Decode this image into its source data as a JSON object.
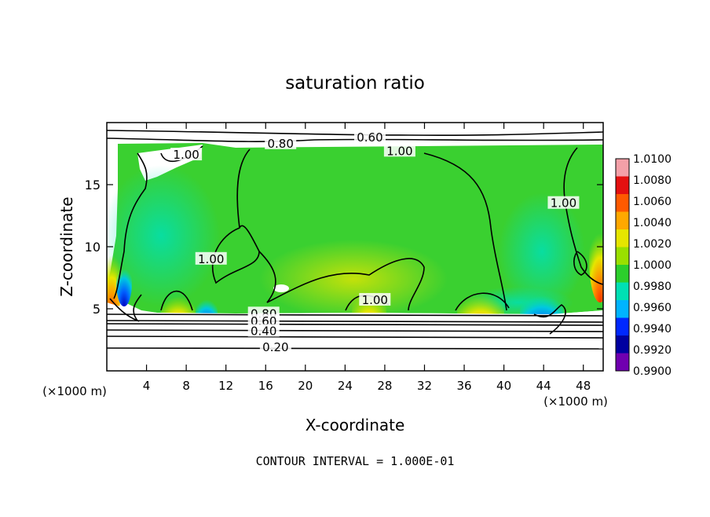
{
  "chart_data": {
    "type": "heatmap",
    "title": "saturation ratio",
    "xlabel": "X-coordinate",
    "ylabel": "Z-coordinate",
    "x_unit": "(×1000 m)",
    "x_unit_right": "(×1000 m)",
    "xlim": [
      0,
      50
    ],
    "ylim": [
      0,
      20
    ],
    "x_ticks": [
      4,
      8,
      12,
      16,
      20,
      24,
      28,
      32,
      36,
      40,
      44,
      48
    ],
    "y_ticks": [
      5,
      10,
      15
    ],
    "footer": "CONTOUR INTERVAL = 1.000E-01",
    "colorbar": {
      "labels": [
        "1.0100",
        "1.0080",
        "1.0060",
        "1.0040",
        "1.0020",
        "1.0000",
        "0.9980",
        "0.9960",
        "0.9940",
        "0.9920",
        "0.9900"
      ],
      "colors": [
        "#f4a0a8",
        "#e41010",
        "#ff5a00",
        "#ffa800",
        "#e6e600",
        "#9ae000",
        "#2ccf2c",
        "#00e0b4",
        "#00b4ff",
        "#0028ff",
        "#0000a0",
        "#7000b0"
      ]
    },
    "contour_labels": [
      {
        "text": "0.60",
        "x": 26.5,
        "z": 18.8
      },
      {
        "text": "0.80",
        "x": 17.5,
        "z": 18.3
      },
      {
        "text": "1.00",
        "x": 29.5,
        "z": 17.7
      },
      {
        "text": "1.00",
        "x": 8.0,
        "z": 17.4
      },
      {
        "text": "1.00",
        "x": 46.0,
        "z": 13.5
      },
      {
        "text": "1.00",
        "x": 10.5,
        "z": 9.0
      },
      {
        "text": "1.00",
        "x": 27.0,
        "z": 5.7
      },
      {
        "text": "0.80",
        "x": 15.8,
        "z": 4.6
      },
      {
        "text": "0.60",
        "x": 15.8,
        "z": 4.0
      },
      {
        "text": "0.40",
        "x": 15.8,
        "z": 3.2
      },
      {
        "text": "0.20",
        "x": 17.0,
        "z": 1.9
      }
    ]
  }
}
